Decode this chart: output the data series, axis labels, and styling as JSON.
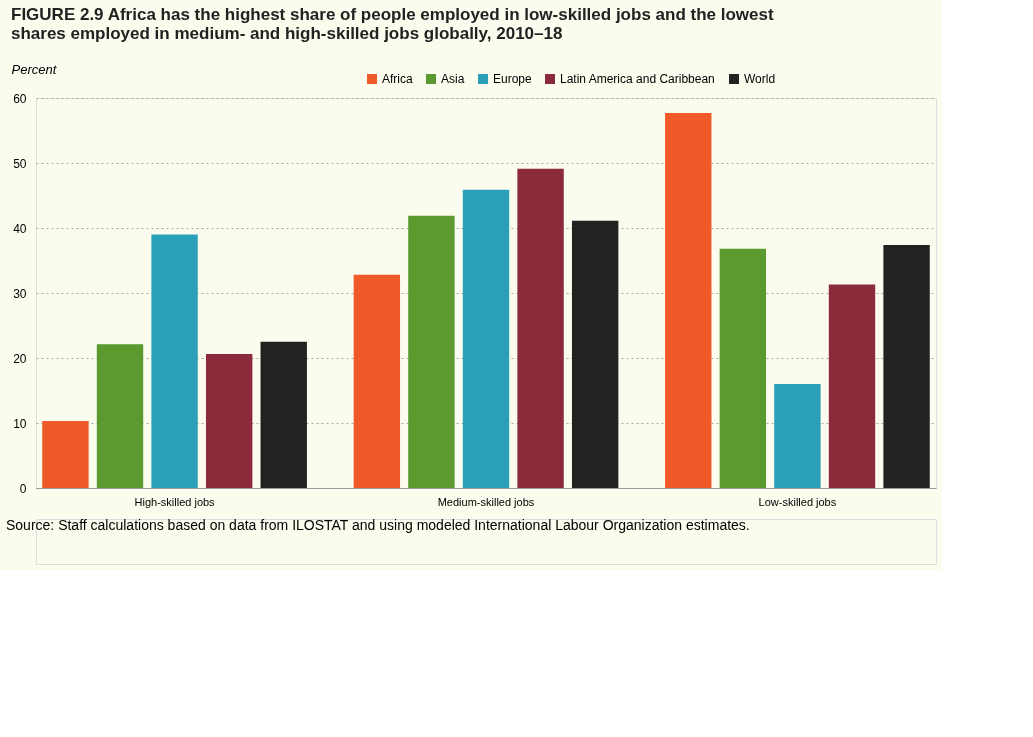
{
  "chart_data": {
    "type": "bar",
    "title": "FIGURE 2.9 Africa has the highest share of people employed in low-skilled jobs and the lowest shares employed in medium- and high-skilled jobs globally, 2010–18",
    "ylabel": "Percent",
    "categories": [
      "High-skilled jobs",
      "Medium-skilled jobs",
      "Low-skilled jobs"
    ],
    "series": [
      {
        "name": "Africa",
        "color": "#f05a28",
        "values": [
          10.3,
          32.8,
          57.7
        ]
      },
      {
        "name": "Asia",
        "color": "#5a9a2e",
        "values": [
          22.1,
          41.9,
          36.8
        ]
      },
      {
        "name": "Europe",
        "color": "#2aa0b8",
        "values": [
          39.0,
          45.9,
          16.0
        ]
      },
      {
        "name": "Latin America and Caribbean",
        "color": "#8b2a3a",
        "values": [
          20.6,
          49.1,
          31.3
        ]
      },
      {
        "name": "World",
        "color": "#222222",
        "values": [
          22.5,
          41.1,
          37.4
        ]
      }
    ],
    "ylim": [
      0,
      60
    ],
    "yticks": [
      0,
      10,
      20,
      30,
      40,
      50,
      60
    ],
    "grid": "y",
    "legend": "top right",
    "annotations": [
      "Source: Staff calculations based on data from ILOSTAT and using modeled International Labour Organization estimates."
    ]
  }
}
